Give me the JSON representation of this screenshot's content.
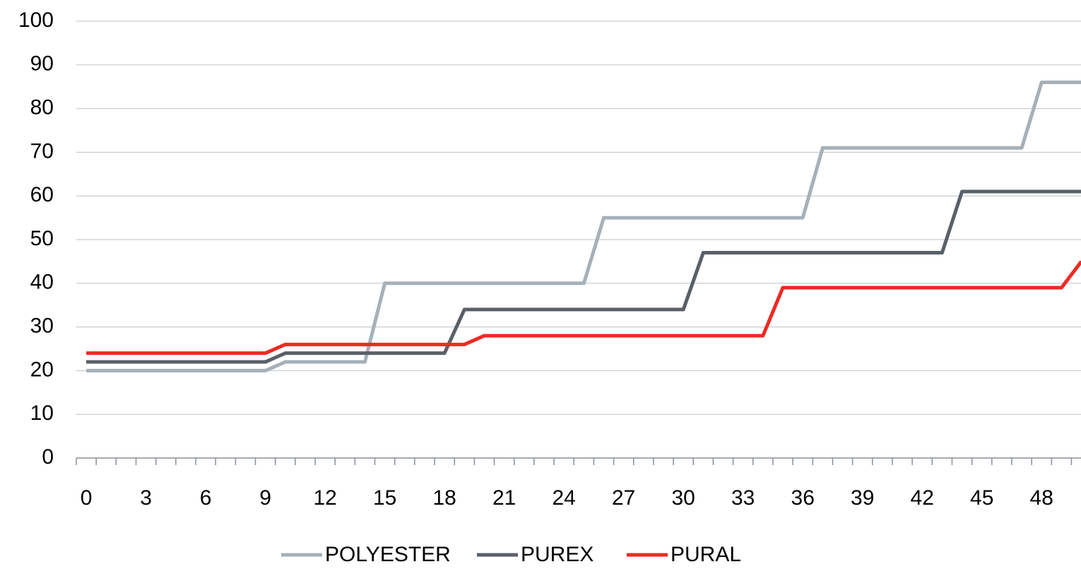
{
  "chart_data": {
    "type": "line",
    "x": [
      0,
      1,
      2,
      3,
      4,
      5,
      6,
      7,
      8,
      9,
      10,
      11,
      12,
      13,
      14,
      15,
      16,
      17,
      18,
      19,
      20,
      21,
      22,
      23,
      24,
      25,
      26,
      27,
      28,
      29,
      30,
      31,
      32,
      33,
      34,
      35,
      36,
      37,
      38,
      39,
      40,
      41,
      42,
      43,
      44,
      45,
      46,
      47,
      48,
      49,
      50
    ],
    "series": [
      {
        "name": "POLYESTER",
        "color": "#a6b0b8",
        "values": [
          20,
          20,
          20,
          20,
          20,
          20,
          20,
          20,
          20,
          20,
          22,
          22,
          22,
          22,
          22,
          40,
          40,
          40,
          40,
          40,
          40,
          40,
          40,
          40,
          40,
          40,
          55,
          55,
          55,
          55,
          55,
          55,
          55,
          55,
          55,
          55,
          55,
          71,
          71,
          71,
          71,
          71,
          71,
          71,
          71,
          71,
          71,
          71,
          86,
          86,
          86
        ]
      },
      {
        "name": "PUREX",
        "color": "#596068",
        "values": [
          22,
          22,
          22,
          22,
          22,
          22,
          22,
          22,
          22,
          22,
          24,
          24,
          24,
          24,
          24,
          24,
          24,
          24,
          24,
          34,
          34,
          34,
          34,
          34,
          34,
          34,
          34,
          34,
          34,
          34,
          34,
          47,
          47,
          47,
          47,
          47,
          47,
          47,
          47,
          47,
          47,
          47,
          47,
          47,
          61,
          61,
          61,
          61,
          61,
          61,
          61
        ]
      },
      {
        "name": "PURAL",
        "color": "#ee2a24",
        "values": [
          24,
          24,
          24,
          24,
          24,
          24,
          24,
          24,
          24,
          24,
          26,
          26,
          26,
          26,
          26,
          26,
          26,
          26,
          26,
          26,
          28,
          28,
          28,
          28,
          28,
          28,
          28,
          28,
          28,
          28,
          28,
          28,
          28,
          28,
          28,
          39,
          39,
          39,
          39,
          39,
          39,
          39,
          39,
          39,
          39,
          39,
          39,
          39,
          39,
          39,
          45
        ]
      }
    ],
    "xlim": [
      -0.5,
      50.5
    ],
    "xticks": [
      0,
      3,
      6,
      9,
      12,
      15,
      18,
      21,
      24,
      27,
      30,
      33,
      36,
      39,
      42,
      45,
      48
    ],
    "ylim": [
      0,
      100
    ],
    "yticks": [
      0,
      10,
      20,
      30,
      40,
      50,
      60,
      70,
      80,
      90,
      100
    ],
    "grid": true,
    "legend": "bottom"
  }
}
